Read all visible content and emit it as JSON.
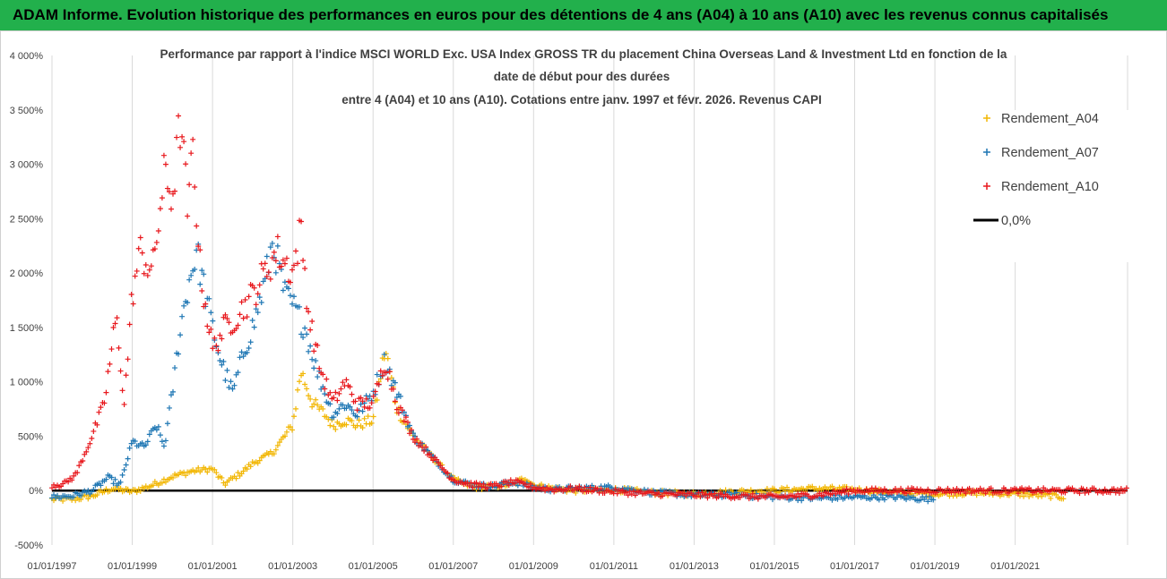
{
  "header": {
    "title": "ADAM Informe. Evolution historique des performances en euros pour des détentions de 4 ans (A04) à 10 ans (A10) avec les revenus connus capitalisés"
  },
  "chart_data": {
    "type": "scatter",
    "title_lines": [
      "Performance par rapport à l'indice MSCI WORLD Exc. USA Index GROSS TR  du placement China Overseas Land & Investment Ltd en fonction de la",
      "date de début pour des durées",
      "entre 4 (A04) et 10 ans (A10). Cotations entre janv. 1997 et févr. 2026. Revenus CAPI"
    ],
    "xlabel": "",
    "ylabel": "",
    "xlim": [
      1997.0,
      2023.8
    ],
    "ylim": [
      -500,
      4000
    ],
    "y_ticks": [
      -500,
      0,
      500,
      1000,
      1500,
      2000,
      2500,
      3000,
      3500,
      4000
    ],
    "y_tick_labels": [
      "-500%",
      "0%",
      "500%",
      "1 000%",
      "1 500%",
      "2 000%",
      "2 500%",
      "3 000%",
      "3 500%",
      "4 000%"
    ],
    "x_ticks": [
      1997,
      1999,
      2001,
      2003,
      2005,
      2007,
      2009,
      2011,
      2013,
      2015,
      2017,
      2019,
      2021
    ],
    "x_tick_labels": [
      "01/01/1997",
      "01/01/1999",
      "01/01/2001",
      "01/01/2003",
      "01/01/2005",
      "01/01/2007",
      "01/01/2009",
      "01/01/2011",
      "01/01/2013",
      "01/01/2015",
      "01/01/2017",
      "01/01/2019",
      "01/01/2021"
    ],
    "grid": "vertical",
    "legend_position": "right",
    "series": [
      {
        "name": "Rendement_A04",
        "color": "#f2b705",
        "marker": "+",
        "x": [
          1997.0,
          1997.5,
          1998.0,
          1998.5,
          1999.0,
          1999.5,
          2000.0,
          2000.5,
          2001.0,
          2001.3,
          2001.7,
          2002.0,
          2002.5,
          2003.0,
          2003.2,
          2003.5,
          2003.8,
          2004.0,
          2004.3,
          2004.6,
          2005.0,
          2005.3,
          2005.6,
          2006.0,
          2006.5,
          2007.0,
          2007.5,
          2008.0,
          2008.5,
          2008.8,
          2009.0,
          2009.5,
          2010.0,
          2011.0,
          2012.0,
          2013.0,
          2014.0,
          2015.0,
          2016.0,
          2017.0,
          2018.0,
          2019.0,
          2020.0,
          2021.0,
          2022.0,
          2022.2
        ],
        "y": [
          -80,
          -80,
          -50,
          20,
          -10,
          50,
          130,
          180,
          200,
          60,
          160,
          250,
          350,
          600,
          1100,
          800,
          700,
          600,
          650,
          600,
          650,
          1300,
          750,
          500,
          300,
          100,
          30,
          40,
          60,
          120,
          50,
          20,
          0,
          10,
          -20,
          -30,
          -10,
          0,
          20,
          10,
          -20,
          -30,
          -20,
          -30,
          -50,
          -60
        ]
      },
      {
        "name": "Rendement_A07",
        "color": "#1f77b4",
        "marker": "+",
        "x": [
          1997.0,
          1997.5,
          1998.0,
          1998.4,
          1998.7,
          1999.0,
          1999.3,
          1999.6,
          1999.8,
          2000.0,
          2000.2,
          2000.4,
          2000.6,
          2001.0,
          2001.2,
          2001.5,
          2001.8,
          2002.0,
          2002.3,
          2002.5,
          2002.8,
          2003.0,
          2003.3,
          2003.6,
          2004.0,
          2004.3,
          2004.6,
          2005.0,
          2005.3,
          2005.6,
          2006.0,
          2006.5,
          2007.0,
          2007.5,
          2008.0,
          2008.5,
          2009.0,
          2009.5,
          2010.0,
          2011.0,
          2012.0,
          2013.0,
          2014.0,
          2015.0,
          2016.0,
          2017.0,
          2018.0,
          2019.0
        ],
        "y": [
          -60,
          -50,
          0,
          120,
          50,
          450,
          400,
          600,
          400,
          900,
          1500,
          1900,
          2200,
          1500,
          1200,
          900,
          1300,
          1500,
          1900,
          2300,
          1800,
          1700,
          1500,
          1100,
          700,
          800,
          700,
          900,
          1200,
          900,
          500,
          300,
          100,
          50,
          40,
          80,
          30,
          10,
          20,
          30,
          -20,
          -40,
          -40,
          -60,
          -70,
          -60,
          -60,
          -80
        ]
      },
      {
        "name": "Rendement_A10",
        "color": "#e8181d",
        "marker": "+",
        "x": [
          1997.0,
          1997.3,
          1997.6,
          1998.0,
          1998.3,
          1998.6,
          1998.8,
          1999.0,
          1999.2,
          1999.5,
          1999.8,
          2000.0,
          2000.2,
          2000.4,
          2000.5,
          2000.7,
          2001.0,
          2001.3,
          2001.6,
          2002.0,
          2002.3,
          2002.6,
          2003.0,
          2003.2,
          2003.4,
          2003.7,
          2004.0,
          2004.3,
          2004.6,
          2005.0,
          2005.3,
          2005.6,
          2006.0,
          2006.5,
          2007.0,
          2007.5,
          2008.0,
          2008.5,
          2009.0,
          2009.5,
          2010.0,
          2011.0,
          2012.0,
          2013.0,
          2014.0,
          2015.0,
          2016.0,
          2017.0,
          2018.0,
          2019.0,
          2020.0,
          2021.0,
          2022.0,
          2023.0,
          2023.8
        ],
        "y": [
          50,
          60,
          150,
          500,
          800,
          1600,
          800,
          1800,
          2200,
          2000,
          2900,
          2700,
          3400,
          2500,
          3200,
          2000,
          1300,
          1500,
          1600,
          1800,
          2000,
          2200,
          2000,
          2400,
          1600,
          1100,
          800,
          1000,
          800,
          800,
          1200,
          800,
          500,
          300,
          100,
          50,
          40,
          80,
          30,
          10,
          20,
          -10,
          -30,
          -40,
          -50,
          -60,
          -40,
          0,
          0,
          0,
          0,
          0,
          0,
          0,
          0
        ]
      },
      {
        "name": "0,0%",
        "color": "#000000",
        "marker": "line",
        "x": [
          1997.0,
          2023.8
        ],
        "y": [
          0,
          0
        ]
      }
    ]
  }
}
